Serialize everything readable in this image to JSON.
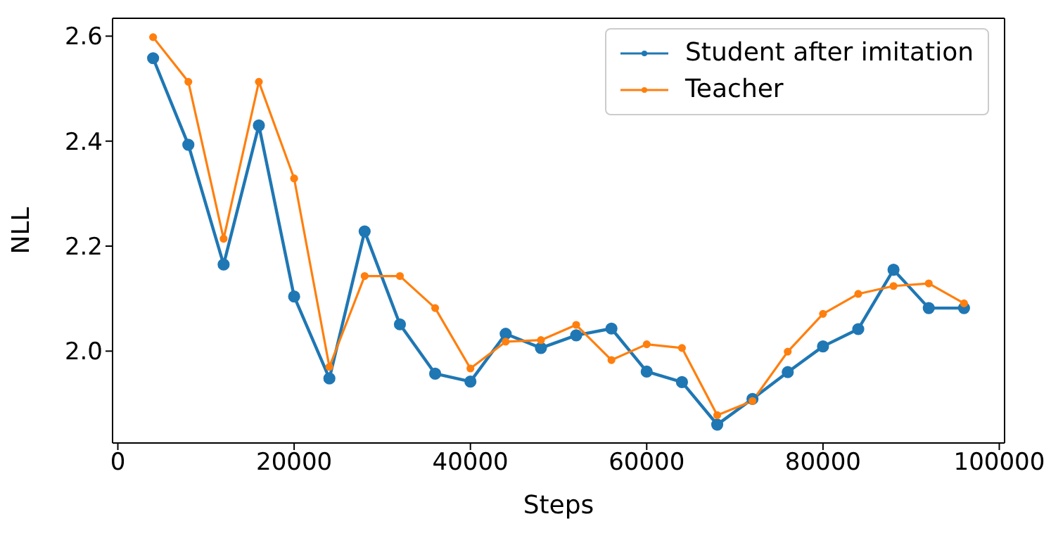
{
  "chart_data": {
    "type": "line",
    "xlabel": "Steps",
    "ylabel": "NLL",
    "x": [
      4000,
      8000,
      12000,
      16000,
      20000,
      24000,
      28000,
      32000,
      36000,
      40000,
      44000,
      48000,
      52000,
      56000,
      60000,
      64000,
      68000,
      72000,
      76000,
      80000,
      84000,
      88000,
      92000,
      96000
    ],
    "series": [
      {
        "name": "Student after imitation",
        "color": "#1f77b4",
        "values": [
          2.558,
          2.393,
          2.165,
          2.43,
          2.104,
          1.948,
          2.228,
          2.051,
          1.957,
          1.942,
          2.033,
          2.006,
          2.03,
          2.043,
          1.961,
          1.941,
          1.86,
          1.909,
          1.96,
          2.009,
          2.042,
          2.155,
          2.082,
          2.082
        ]
      },
      {
        "name": "Teacher",
        "color": "#ff7f0e",
        "values": [
          2.598,
          2.513,
          2.214,
          2.513,
          2.329,
          1.97,
          2.143,
          2.143,
          2.082,
          1.967,
          2.018,
          2.021,
          2.05,
          1.983,
          2.013,
          2.006,
          1.878,
          1.905,
          1.999,
          2.071,
          2.109,
          2.124,
          2.129,
          2.091
        ]
      }
    ],
    "xlim": [
      -600,
      100600
    ],
    "xticks": [
      0,
      20000,
      40000,
      60000,
      80000,
      100000
    ],
    "ylim": [
      1.825,
      2.634
    ],
    "yticks": [
      {
        "value": 2.0,
        "label": "2.0"
      },
      {
        "value": 2.2,
        "label": "2.2"
      },
      {
        "value": 2.4,
        "label": "2.4"
      },
      {
        "value": 2.6,
        "label": "2.6"
      }
    ],
    "legend": "top right",
    "marker": "circle",
    "line_style": "solid",
    "grid": false
  }
}
